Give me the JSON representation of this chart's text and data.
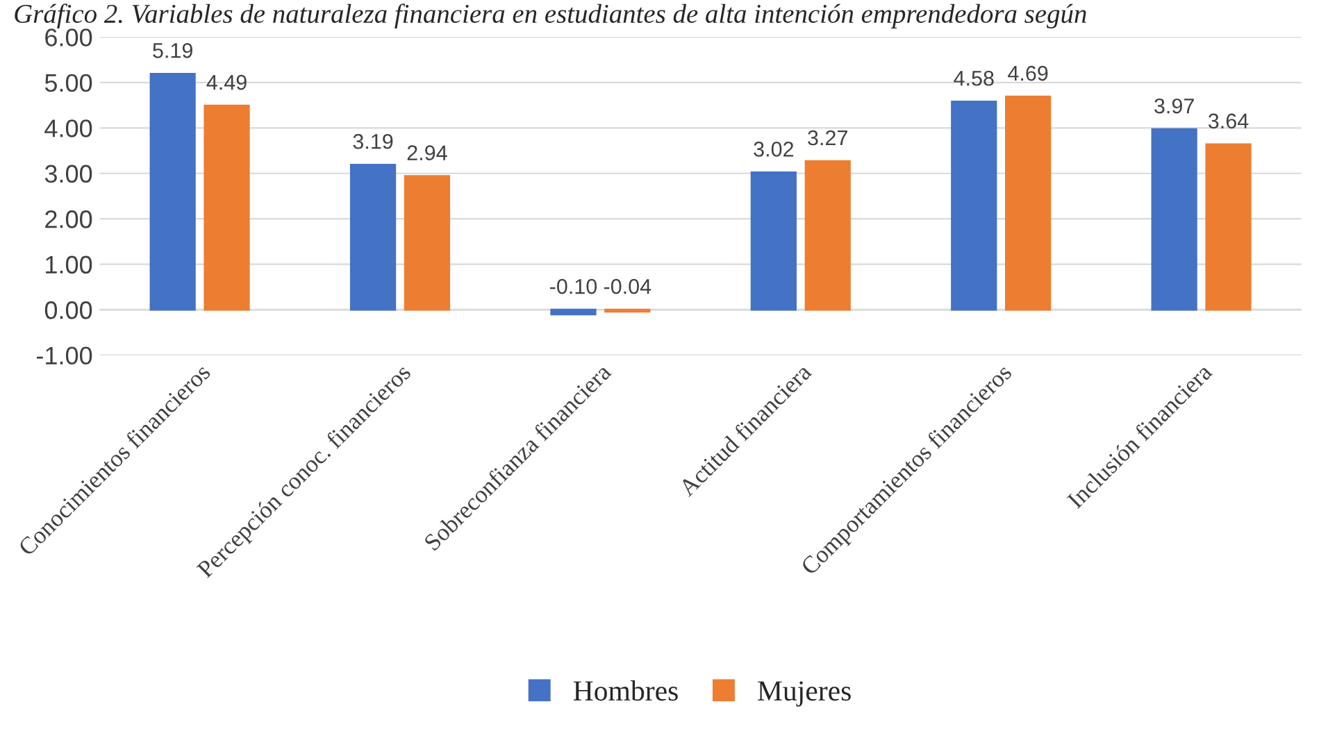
{
  "chart_data": {
    "type": "bar",
    "title": "Gráfico 2. Variables de naturaleza financiera en estudiantes de alta intención emprendedora según",
    "categories": [
      "Conocimientos financieros",
      "Percepción conoc. financieros",
      "Sobreconfianza financiera",
      "Actitud financiera",
      "Comportamientos financieros",
      "Inclusión financiera"
    ],
    "series": [
      {
        "name": "Hombres",
        "color": "#4472c4",
        "values": [
          5.19,
          3.19,
          -0.1,
          3.02,
          4.58,
          3.97
        ]
      },
      {
        "name": "Mujeres",
        "color": "#ed7d31",
        "values": [
          4.49,
          2.94,
          -0.04,
          3.27,
          4.69,
          3.64
        ]
      }
    ],
    "ylim": [
      -1,
      6
    ],
    "yticks": [
      {
        "value": -1,
        "label": "-1.00"
      },
      {
        "value": 0,
        "label": "0.00"
      },
      {
        "value": 1,
        "label": "1.00"
      },
      {
        "value": 2,
        "label": "2.00"
      },
      {
        "value": 3,
        "label": "3.00"
      },
      {
        "value": 4,
        "label": "4.00"
      },
      {
        "value": 5,
        "label": "5.00"
      },
      {
        "value": 6,
        "label": "6.00"
      }
    ],
    "value_labels": [
      [
        "5.19",
        "3.19",
        "-0.10",
        "3.02",
        "4.58",
        "3.97"
      ],
      [
        "4.49",
        "2.94",
        "-0.04",
        "3.27",
        "4.69",
        "3.64"
      ]
    ],
    "grid": "y",
    "legend": "bottom"
  }
}
